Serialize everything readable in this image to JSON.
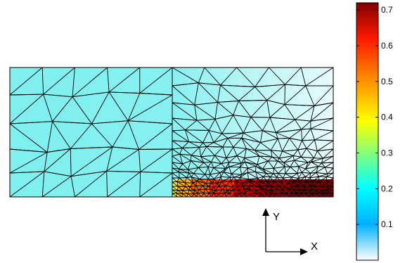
{
  "diagram": {
    "colormap": [
      "#ffffff",
      "#00a8ff",
      "#00ffff",
      "#ffff00",
      "#ff8000",
      "#ff0000",
      "#800000"
    ],
    "domain_fill": "#7fefef",
    "upper_right_fill": "#dff9f9",
    "hot_strip_colors": [
      "#ffff33",
      "#ffb000",
      "#ff6a00",
      "#ff2a00",
      "#d40000",
      "#a00000",
      "#800000"
    ]
  },
  "colorbar": {
    "ticks": [
      "0.1",
      "0.2",
      "0.3",
      "0.4",
      "0.5",
      "0.6",
      "0.7"
    ],
    "tick_values": [
      0.1,
      0.2,
      0.3,
      0.4,
      0.5,
      0.6,
      0.7
    ],
    "range": [
      0,
      0.72
    ]
  },
  "axes": {
    "x_label": "X",
    "y_label": "Y"
  }
}
